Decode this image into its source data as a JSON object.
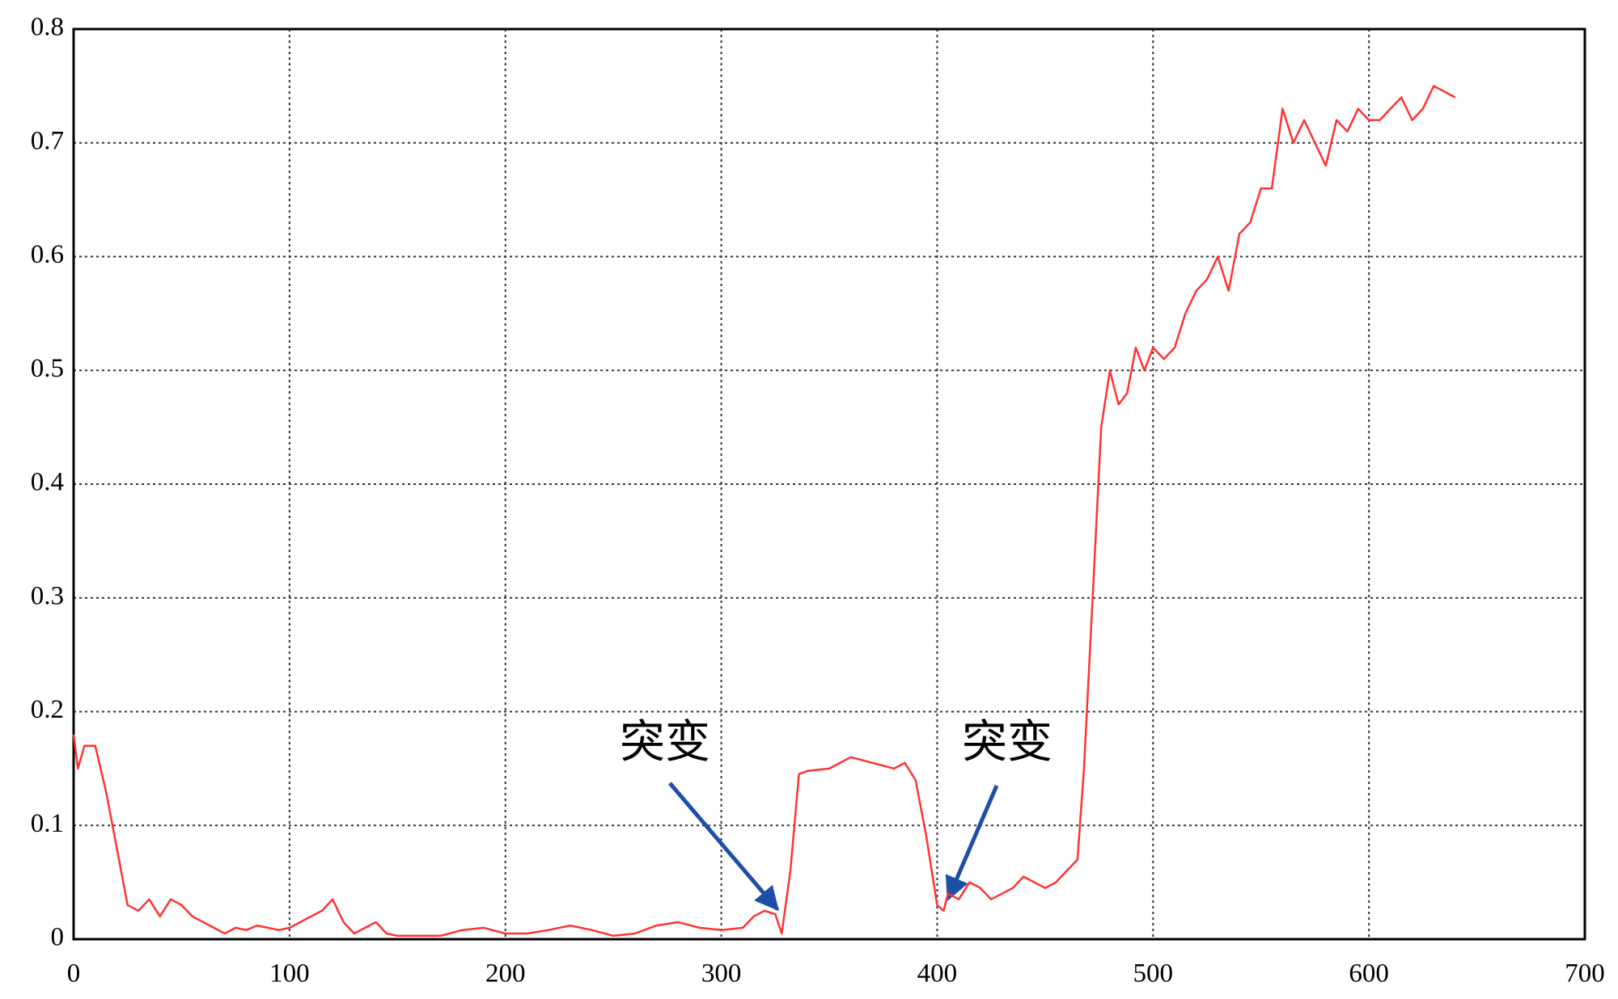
{
  "chart_data": {
    "type": "line",
    "x": [
      0,
      2,
      5,
      10,
      15,
      20,
      25,
      30,
      35,
      40,
      45,
      50,
      55,
      60,
      65,
      70,
      75,
      80,
      85,
      90,
      95,
      100,
      105,
      110,
      115,
      120,
      125,
      130,
      135,
      140,
      145,
      150,
      160,
      170,
      180,
      190,
      200,
      210,
      220,
      230,
      240,
      250,
      260,
      270,
      280,
      290,
      300,
      310,
      315,
      320,
      325,
      328,
      332,
      336,
      340,
      350,
      360,
      370,
      380,
      385,
      390,
      395,
      400,
      403,
      405,
      410,
      415,
      420,
      425,
      430,
      435,
      440,
      445,
      450,
      455,
      460,
      465,
      468,
      472,
      476,
      480,
      484,
      488,
      492,
      496,
      500,
      505,
      510,
      515,
      520,
      525,
      530,
      535,
      540,
      545,
      550,
      555,
      560,
      565,
      570,
      575,
      580,
      585,
      590,
      595,
      600,
      605,
      610,
      615,
      620,
      625,
      630,
      635,
      640
    ],
    "series": [
      {
        "color": "#ff3333",
        "values": [
          0.18,
          0.15,
          0.17,
          0.17,
          0.13,
          0.08,
          0.03,
          0.025,
          0.035,
          0.02,
          0.035,
          0.03,
          0.02,
          0.015,
          0.01,
          0.005,
          0.01,
          0.008,
          0.012,
          0.01,
          0.008,
          0.01,
          0.015,
          0.02,
          0.025,
          0.035,
          0.015,
          0.005,
          0.01,
          0.015,
          0.005,
          0.003,
          0.003,
          0.003,
          0.008,
          0.01,
          0.005,
          0.005,
          0.008,
          0.012,
          0.008,
          0.003,
          0.005,
          0.012,
          0.015,
          0.01,
          0.008,
          0.01,
          0.02,
          0.025,
          0.022,
          0.005,
          0.06,
          0.145,
          0.148,
          0.15,
          0.16,
          0.155,
          0.15,
          0.155,
          0.14,
          0.09,
          0.03,
          0.025,
          0.04,
          0.035,
          0.05,
          0.045,
          0.035,
          0.04,
          0.045,
          0.055,
          0.05,
          0.045,
          0.05,
          0.06,
          0.07,
          0.15,
          0.3,
          0.45,
          0.5,
          0.47,
          0.48,
          0.52,
          0.5,
          0.52,
          0.51,
          0.52,
          0.55,
          0.57,
          0.58,
          0.6,
          0.57,
          0.62,
          0.63,
          0.66,
          0.66,
          0.73,
          0.7,
          0.72,
          0.7,
          0.68,
          0.72,
          0.71,
          0.73,
          0.72,
          0.72,
          0.73,
          0.74,
          0.72,
          0.73,
          0.75,
          0.745,
          0.74
        ]
      }
    ],
    "xlim": [
      0,
      700
    ],
    "xticks": [
      0,
      100,
      200,
      300,
      400,
      500,
      600,
      700
    ],
    "ylim": [
      0,
      0.8
    ],
    "yticks": [
      0,
      0.1,
      0.2,
      0.3,
      0.4,
      0.5,
      0.6,
      0.7,
      0.8
    ],
    "grid": true,
    "annotations": [
      "突变",
      "突变"
    ]
  }
}
